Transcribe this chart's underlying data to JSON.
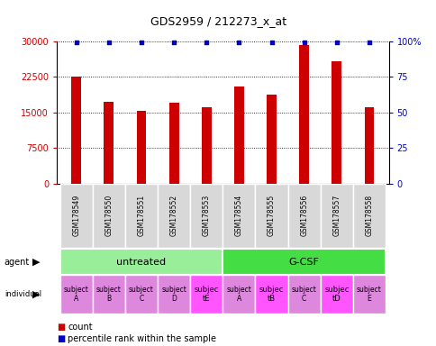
{
  "title": "GDS2959 / 212273_x_at",
  "samples": [
    "GSM178549",
    "GSM178550",
    "GSM178551",
    "GSM178552",
    "GSM178553",
    "GSM178554",
    "GSM178555",
    "GSM178556",
    "GSM178557",
    "GSM178558"
  ],
  "counts": [
    22600,
    17200,
    15400,
    17100,
    16200,
    20500,
    18800,
    29200,
    25800,
    16200
  ],
  "bar_color": "#cc0000",
  "percentile_color": "#0000cc",
  "agent_groups": [
    {
      "label": "untreated",
      "start": 0,
      "end": 5,
      "color": "#99ee99"
    },
    {
      "label": "G-CSF",
      "start": 5,
      "end": 10,
      "color": "#44dd44"
    }
  ],
  "individuals": [
    "subject\nA",
    "subject\nB",
    "subject\nC",
    "subject\nD",
    "subjec\ntE",
    "subject\nA",
    "subjec\ntB",
    "subject\nC",
    "subjec\ntD",
    "subject\nE"
  ],
  "individual_highlight": [
    4,
    6,
    8
  ],
  "individual_highlight_color": "#ff55ff",
  "individual_normal_color": "#dd88dd",
  "ylim": [
    0,
    30000
  ],
  "yticks": [
    0,
    7500,
    15000,
    22500,
    30000
  ],
  "y2ticks": [
    0,
    25,
    50,
    75,
    100
  ],
  "y2labels": [
    "0",
    "25",
    "50",
    "75",
    "100%"
  ],
  "legend_count_color": "#cc0000",
  "legend_percentile_color": "#0000cc",
  "sample_box_color": "#d8d8d8",
  "bar_width": 0.3
}
